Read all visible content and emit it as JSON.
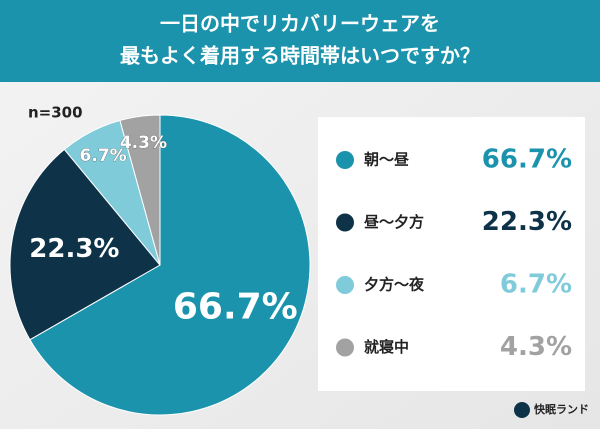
{
  "chart_data": {
    "type": "pie",
    "title_lines": [
      "一日の中でリカバリーウェアを",
      "最もよく着用する時間帯はいつですか？"
    ],
    "note": "n=300",
    "categories": [
      "朝〜昼",
      "昼〜夕方",
      "夕方〜夜",
      "就寝中"
    ],
    "values": [
      66.7,
      22.3,
      6.7,
      4.3
    ],
    "value_labels": [
      "66.7%",
      "22.3%",
      "6.7%",
      "4.3%"
    ],
    "colors": [
      "#1b93ac",
      "#0e3348",
      "#7fcbda",
      "#a2a2a2"
    ],
    "source": "快眠ランド"
  }
}
